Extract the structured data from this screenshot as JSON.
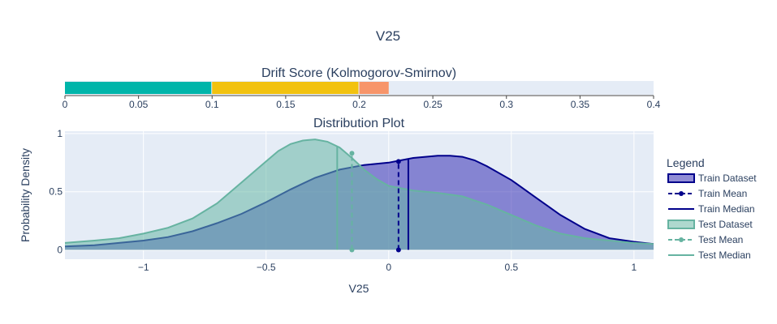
{
  "chart_data": [
    {
      "type": "bar",
      "panel": "drift-score",
      "title": "Drift Score (Kolmogorov-Smirnov)",
      "orientation": "horizontal",
      "xlim": [
        0,
        0.4
      ],
      "x_ticks": [
        0,
        0.05,
        0.1,
        0.15,
        0.2,
        0.25,
        0.3,
        0.35,
        0.4
      ],
      "x_tick_labels": [
        "0",
        "0.05",
        "0.1",
        "0.15",
        "0.2",
        "0.25",
        "0.3",
        "0.35",
        "0.4"
      ],
      "segments": [
        {
          "from": 0,
          "to": 0.1,
          "color": "#00b5aa"
        },
        {
          "from": 0.1,
          "to": 0.2,
          "color": "#f2c20f"
        },
        {
          "from": 0.2,
          "to": 0.22,
          "color": "#f7956a"
        }
      ],
      "value": 0.22,
      "grid": false
    },
    {
      "type": "area",
      "panel": "distribution",
      "title": "Distribution Plot",
      "xlabel": "V25",
      "ylabel": "Probability Density",
      "xlim": [
        -1.32,
        1.08
      ],
      "ylim": [
        -0.08,
        1.02
      ],
      "x_ticks": [
        -1,
        -0.5,
        0,
        0.5,
        1
      ],
      "x_tick_labels": [
        "−1",
        "−0.5",
        "0",
        "0.5",
        "1"
      ],
      "y_ticks": [
        0,
        0.5,
        1
      ],
      "y_tick_labels": [
        "0",
        "0.5",
        "1"
      ],
      "grid": true,
      "series": [
        {
          "name": "Train Dataset",
          "kind": "density",
          "color": "#00008b",
          "fill": "rgba(55,48,180,0.55)",
          "x": [
            -1.32,
            -1.2,
            -1.1,
            -1.0,
            -0.9,
            -0.8,
            -0.7,
            -0.6,
            -0.5,
            -0.4,
            -0.3,
            -0.2,
            -0.1,
            0.0,
            0.05,
            0.1,
            0.15,
            0.2,
            0.25,
            0.3,
            0.35,
            0.4,
            0.5,
            0.6,
            0.7,
            0.8,
            0.9,
            1.0,
            1.08
          ],
          "y": [
            0.03,
            0.04,
            0.06,
            0.08,
            0.11,
            0.16,
            0.23,
            0.31,
            0.41,
            0.52,
            0.62,
            0.69,
            0.73,
            0.75,
            0.77,
            0.79,
            0.8,
            0.81,
            0.81,
            0.8,
            0.77,
            0.72,
            0.6,
            0.45,
            0.3,
            0.18,
            0.1,
            0.07,
            0.05
          ]
        },
        {
          "name": "Train Mean",
          "kind": "mean",
          "color": "#00008b",
          "x": 0.04,
          "y": 0.76
        },
        {
          "name": "Train Median",
          "kind": "median",
          "color": "#00008b",
          "x": 0.08,
          "y": 0.78
        },
        {
          "name": "Test Dataset",
          "kind": "density",
          "color": "#66b3a1",
          "fill": "rgba(106,184,166,0.55)",
          "x": [
            -1.32,
            -1.2,
            -1.1,
            -1.0,
            -0.9,
            -0.8,
            -0.7,
            -0.6,
            -0.5,
            -0.45,
            -0.4,
            -0.35,
            -0.3,
            -0.25,
            -0.2,
            -0.15,
            -0.1,
            -0.05,
            0.0,
            0.1,
            0.2,
            0.3,
            0.4,
            0.5,
            0.6,
            0.7,
            0.8,
            0.9,
            1.0,
            1.08
          ],
          "y": [
            0.06,
            0.08,
            0.1,
            0.14,
            0.19,
            0.27,
            0.4,
            0.58,
            0.76,
            0.85,
            0.91,
            0.94,
            0.95,
            0.93,
            0.88,
            0.79,
            0.69,
            0.61,
            0.55,
            0.51,
            0.49,
            0.46,
            0.39,
            0.3,
            0.21,
            0.14,
            0.1,
            0.08,
            0.06,
            0.05
          ]
        },
        {
          "name": "Test Mean",
          "kind": "mean",
          "color": "#66b3a1",
          "x": -0.15,
          "y": 0.83
        },
        {
          "name": "Test Median",
          "kind": "median",
          "color": "#66b3a1",
          "x": -0.21,
          "y": 0.89
        }
      ]
    }
  ],
  "figure": {
    "title": "V25",
    "legend_title": "Legend",
    "legend_placement": "right",
    "plot_background": "#e5ecf6",
    "text_color": "#2a3f5f"
  }
}
